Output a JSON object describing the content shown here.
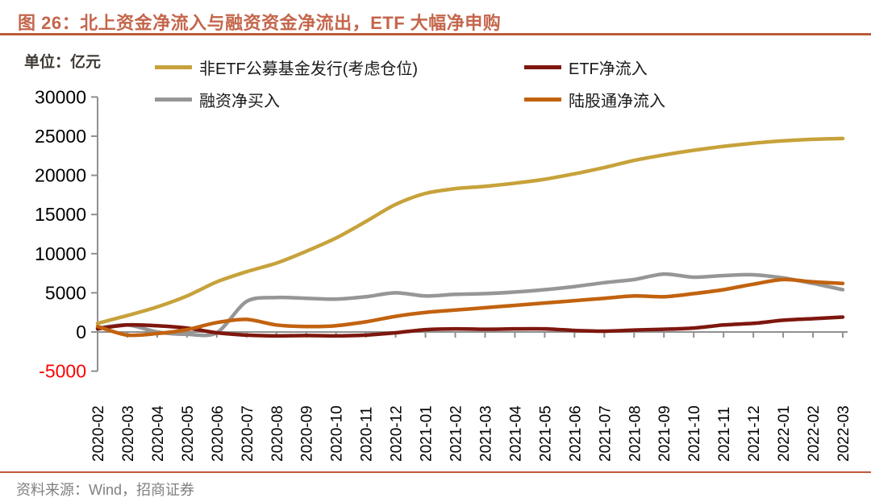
{
  "title": "图 26：北上资金净流入与融资资金净流出，ETF 大幅净申购",
  "unit_label": "单位：亿元",
  "source": "资料来源：Wind，招商证券",
  "colors": {
    "title_accent": "#C4664C",
    "rule_line": "#BC5B3B",
    "axis_gray": "#909090",
    "tick_label": "#000000",
    "negative_tick": "#FF0000",
    "source_text": "#808080",
    "unit_text": "#3F3A33"
  },
  "chart_data": {
    "type": "line",
    "title": "北上资金净流入与融资资金净流出，ETF 大幅净申购",
    "unit": "亿元",
    "xlabel": "",
    "ylabel": "",
    "ylim": [
      -5000,
      30000
    ],
    "yticks": [
      30000,
      25000,
      20000,
      15000,
      10000,
      5000,
      0,
      -5000
    ],
    "grid": false,
    "legend_position": "top",
    "x": [
      "2020-02",
      "2020-03",
      "2020-04",
      "2020-05",
      "2020-06",
      "2020-07",
      "2020-08",
      "2020-09",
      "2020-10",
      "2020-11",
      "2020-12",
      "2021-01",
      "2021-02",
      "2021-03",
      "2021-04",
      "2021-05",
      "2021-06",
      "2021-07",
      "2021-08",
      "2021-09",
      "2021-10",
      "2021-11",
      "2021-12",
      "2022-01",
      "2022-02",
      "2022-03"
    ],
    "series": [
      {
        "name": "非ETF公募基金发行(考虑仓位)",
        "color": "#C7A23B",
        "values": [
          1100,
          2100,
          3200,
          4600,
          6400,
          7700,
          8800,
          10300,
          12000,
          14100,
          16300,
          17700,
          18300,
          18600,
          19000,
          19500,
          20200,
          21000,
          21900,
          22600,
          23200,
          23700,
          24100,
          24400,
          24600,
          24700
        ]
      },
      {
        "name": "ETF净流入",
        "color": "#7E170E",
        "values": [
          400,
          900,
          800,
          500,
          -100,
          -400,
          -500,
          -450,
          -500,
          -400,
          -100,
          300,
          400,
          350,
          400,
          400,
          200,
          100,
          250,
          350,
          500,
          900,
          1100,
          1500,
          1700,
          1900
        ]
      },
      {
        "name": "融资净买入",
        "color": "#969696",
        "values": [
          500,
          900,
          0,
          -300,
          -100,
          3900,
          4400,
          4300,
          4200,
          4500,
          5000,
          4600,
          4800,
          4900,
          5100,
          5400,
          5800,
          6300,
          6700,
          7400,
          7000,
          7200,
          7300,
          6900,
          6200,
          5400
        ]
      },
      {
        "name": "陆股通净流入",
        "color": "#C2620F",
        "values": [
          700,
          -400,
          -200,
          300,
          1200,
          1600,
          900,
          700,
          800,
          1300,
          2000,
          2500,
          2800,
          3100,
          3400,
          3700,
          4000,
          4300,
          4600,
          4500,
          4900,
          5400,
          6100,
          6700,
          6400,
          6200
        ]
      }
    ]
  }
}
